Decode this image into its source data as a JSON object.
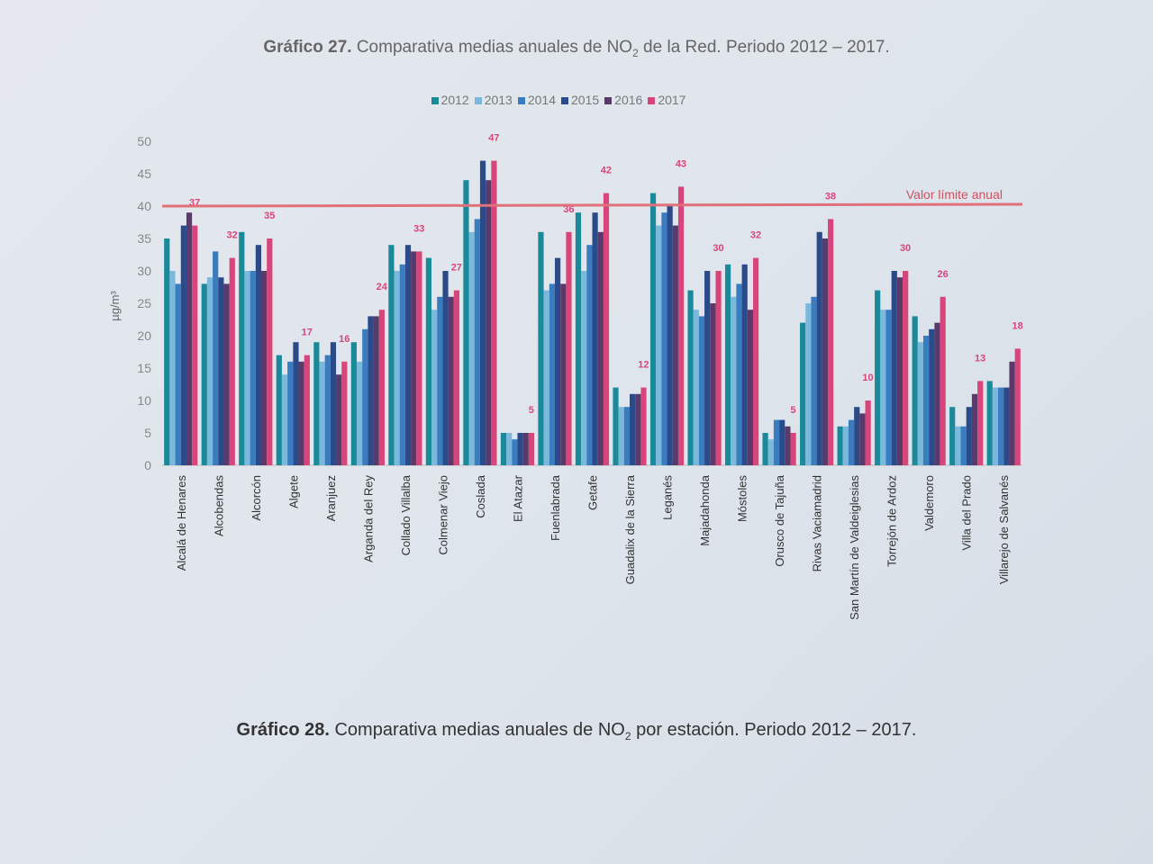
{
  "caption_top": {
    "label": "Gráfico 27.",
    "text_before": " Comparativa medias anuales de NO",
    "sub": "2",
    "text_after": " de la Red. Periodo 2012 – 2017."
  },
  "caption_bottom": {
    "label": "Gráfico 28.",
    "text_before": " Comparativa medias anuales de NO",
    "sub": "2",
    "text_after": " por estación. Periodo 2012 – 2017."
  },
  "chart_data": {
    "type": "bar",
    "ylabel": "µg/m³",
    "ylim": [
      0,
      50
    ],
    "yticks": [
      "0",
      "5",
      "10",
      "15",
      "20",
      "25",
      "30",
      "35",
      "40",
      "45",
      "50"
    ],
    "grid": false,
    "legend_position": "top",
    "reference_line": {
      "value": 40,
      "label": "Valor límite anual",
      "color": "#e0707a"
    },
    "categories": [
      "Alcalá de Henares",
      "Alcobendas",
      "Alcorcón",
      "Algete",
      "Aranjuez",
      "Arganda del Rey",
      "Collado Villalba",
      "Colmenar Viejo",
      "Coslada",
      "El Atazar",
      "Fuenlabrada",
      "Getafe",
      "Guadalix de la Sierra",
      "Leganés",
      "Majadahonda",
      "Móstoles",
      "Orusco de Tajuña",
      "Rivas Vaciamadrid",
      "San Martín de Valdeiglesias",
      "Torrejón de Ardoz",
      "Valdemoro",
      "Villa del Prado",
      "Villarejo de Salvanés"
    ],
    "series": [
      {
        "name": "2012",
        "color": "#1a8a9a",
        "values": [
          35,
          28,
          36,
          17,
          19,
          19,
          34,
          32,
          44,
          5,
          36,
          39,
          12,
          42,
          27,
          31,
          5,
          22,
          6,
          27,
          23,
          9,
          13
        ]
      },
      {
        "name": "2013",
        "color": "#7ab8dc",
        "values": [
          30,
          29,
          30,
          14,
          16,
          16,
          30,
          24,
          36,
          5,
          27,
          30,
          9,
          37,
          24,
          26,
          4,
          25,
          6,
          24,
          19,
          6,
          12
        ]
      },
      {
        "name": "2014",
        "color": "#3a7cc0",
        "values": [
          28,
          33,
          30,
          16,
          17,
          21,
          31,
          26,
          38,
          4,
          28,
          34,
          9,
          39,
          23,
          28,
          7,
          26,
          7,
          24,
          20,
          6,
          12
        ]
      },
      {
        "name": "2015",
        "color": "#2a4a8a",
        "values": [
          37,
          29,
          34,
          19,
          19,
          23,
          34,
          30,
          47,
          5,
          32,
          39,
          11,
          40,
          30,
          31,
          7,
          36,
          9,
          30,
          21,
          9,
          12
        ]
      },
      {
        "name": "2016",
        "color": "#5a3a6a",
        "values": [
          39,
          28,
          30,
          16,
          14,
          23,
          33,
          26,
          44,
          5,
          28,
          36,
          11,
          37,
          25,
          24,
          6,
          35,
          8,
          29,
          22,
          11,
          16
        ]
      },
      {
        "name": "2017",
        "color": "#d8457a",
        "values": [
          37,
          32,
          35,
          17,
          16,
          24,
          33,
          27,
          47,
          5,
          36,
          42,
          12,
          43,
          30,
          32,
          5,
          38,
          10,
          30,
          26,
          13,
          18
        ]
      }
    ],
    "data_labels": [
      "37",
      "32",
      "35",
      "17",
      "16",
      "24",
      "33",
      "27",
      "47",
      "5",
      "36",
      "42",
      "12",
      "43",
      "30",
      "32",
      "5",
      "38",
      "10",
      "30",
      "26",
      "13",
      "18"
    ]
  }
}
